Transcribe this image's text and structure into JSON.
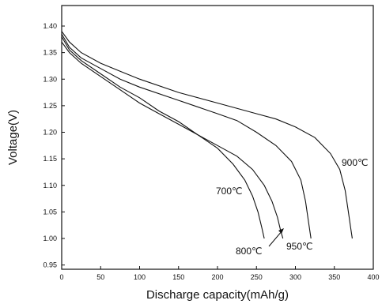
{
  "chart_data": {
    "type": "line",
    "xlabel": "Discharge capacity(mAh/g)",
    "ylabel": "Voltage(V)",
    "xlim": [
      0,
      400
    ],
    "ylim": [
      0.95,
      1.42
    ],
    "xticks": [
      0,
      50,
      100,
      150,
      200,
      250,
      300,
      350,
      400
    ],
    "yticks": [
      0.95,
      1.0,
      1.05,
      1.1,
      1.15,
      1.2,
      1.25,
      1.3,
      1.35,
      1.4
    ],
    "xtick_labels": [
      "0",
      "50",
      "100",
      "150",
      "200",
      "250",
      "300",
      "350",
      "400"
    ],
    "ytick_labels": [
      "0.95",
      "1.00",
      "1.05",
      "1.10",
      "1.15",
      "1.20",
      "1.25",
      "1.30",
      "1.35",
      "1.40"
    ],
    "grid": false,
    "legend": "none; series labeled directly on curves",
    "series": [
      {
        "name": "700℃",
        "x": [
          0,
          10,
          25,
          50,
          75,
          100,
          125,
          150,
          175,
          200,
          220,
          235,
          245,
          252,
          257,
          260
        ],
        "y": [
          1.38,
          1.355,
          1.335,
          1.31,
          1.285,
          1.265,
          1.24,
          1.22,
          1.195,
          1.17,
          1.14,
          1.11,
          1.08,
          1.05,
          1.02,
          1.0
        ]
      },
      {
        "name": "800℃",
        "x": [
          0,
          10,
          25,
          50,
          75,
          100,
          125,
          150,
          175,
          200,
          225,
          245,
          260,
          270,
          277,
          281,
          284
        ],
        "y": [
          1.37,
          1.35,
          1.33,
          1.305,
          1.28,
          1.255,
          1.235,
          1.215,
          1.195,
          1.175,
          1.155,
          1.13,
          1.1,
          1.07,
          1.04,
          1.015,
          1.0
        ]
      },
      {
        "name": "950℃",
        "x": [
          0,
          10,
          25,
          50,
          75,
          100,
          150,
          200,
          225,
          250,
          275,
          295,
          307,
          313,
          317,
          320
        ],
        "y": [
          1.385,
          1.36,
          1.34,
          1.32,
          1.3,
          1.285,
          1.26,
          1.235,
          1.222,
          1.2,
          1.175,
          1.145,
          1.11,
          1.07,
          1.03,
          1.0
        ]
      },
      {
        "name": "900℃",
        "x": [
          0,
          10,
          25,
          50,
          75,
          100,
          150,
          200,
          250,
          275,
          300,
          325,
          345,
          357,
          364,
          368,
          371,
          373
        ],
        "y": [
          1.39,
          1.37,
          1.35,
          1.33,
          1.315,
          1.3,
          1.275,
          1.255,
          1.235,
          1.225,
          1.21,
          1.19,
          1.16,
          1.13,
          1.09,
          1.05,
          1.02,
          1.0
        ]
      }
    ]
  }
}
